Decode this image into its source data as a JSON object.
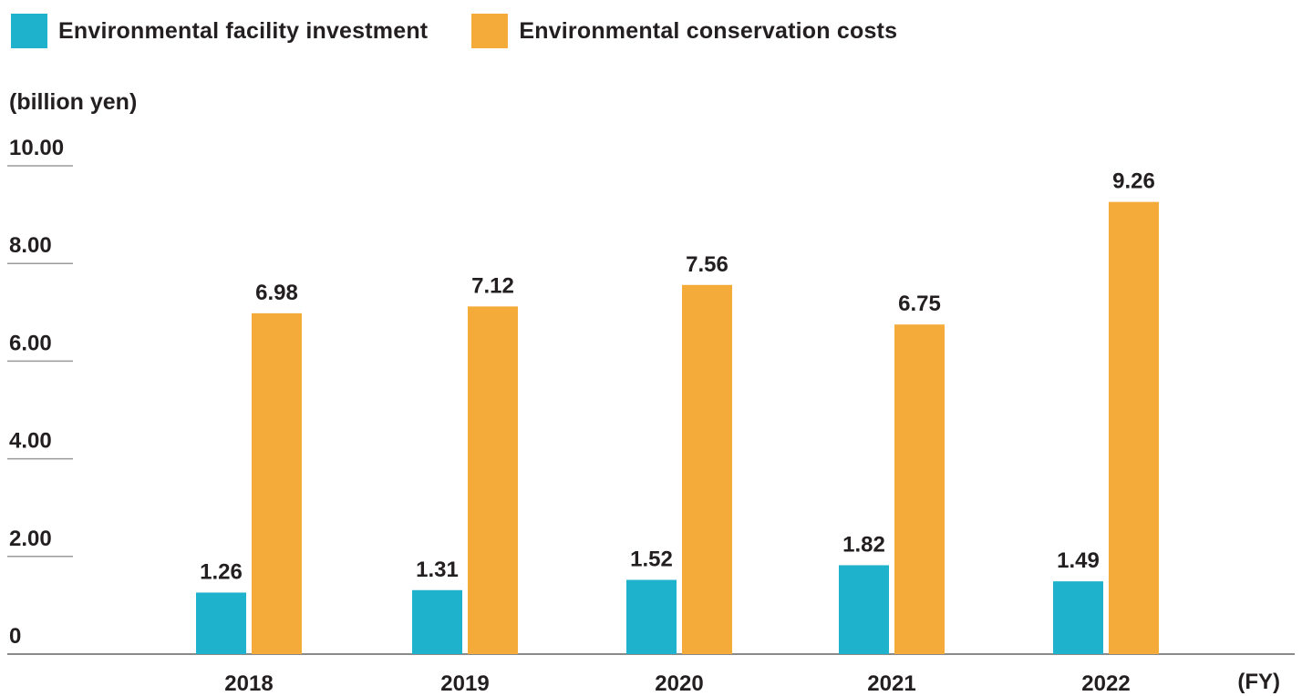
{
  "chart_data": {
    "type": "bar",
    "title": "",
    "ylabel": "(billion yen)",
    "xlabel": "(FY)",
    "categories": [
      "2018",
      "2019",
      "2020",
      "2021",
      "2022"
    ],
    "ylim": [
      0,
      10
    ],
    "yticks": [
      {
        "value": 0,
        "label": "0"
      },
      {
        "value": 2,
        "label": "2.00"
      },
      {
        "value": 4,
        "label": "4.00"
      },
      {
        "value": 6,
        "label": "6.00"
      },
      {
        "value": 8,
        "label": "8.00"
      },
      {
        "value": 10,
        "label": "10.00"
      }
    ],
    "legend_position": "top-left",
    "grid": false,
    "series": [
      {
        "name": "Environmental facility investment",
        "color": "#1fb2cc",
        "values": [
          1.26,
          1.31,
          1.52,
          1.82,
          1.49
        ],
        "labels": [
          "1.26",
          "1.31",
          "1.52",
          "1.82",
          "1.49"
        ]
      },
      {
        "name": "Environmental conservation costs",
        "color": "#f5ab3a",
        "values": [
          6.98,
          7.12,
          7.56,
          6.75,
          9.26
        ],
        "labels": [
          "6.98",
          "7.12",
          "7.56",
          "6.75",
          "9.26"
        ]
      }
    ]
  }
}
